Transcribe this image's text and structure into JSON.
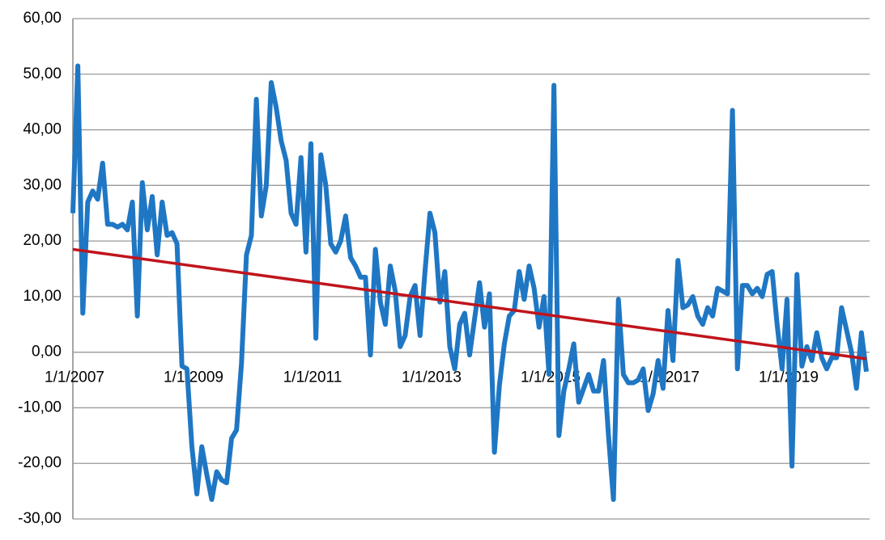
{
  "chart_data": {
    "type": "line",
    "categories": [
      "1/1/2007",
      null,
      null,
      null,
      null,
      null,
      null,
      null,
      null,
      null,
      null,
      null,
      null,
      null,
      null,
      null,
      null,
      null,
      null,
      null,
      null,
      null,
      null,
      null,
      "1/1/2009",
      null,
      null,
      null,
      null,
      null,
      null,
      null,
      null,
      null,
      null,
      null,
      null,
      null,
      null,
      null,
      null,
      null,
      null,
      null,
      null,
      null,
      null,
      null,
      "1/1/2011",
      null,
      null,
      null,
      null,
      null,
      null,
      null,
      null,
      null,
      null,
      null,
      null,
      null,
      null,
      null,
      null,
      null,
      null,
      null,
      null,
      null,
      null,
      null,
      "1/1/2013",
      null,
      null,
      null,
      null,
      null,
      null,
      null,
      null,
      null,
      null,
      null,
      null,
      null,
      null,
      null,
      null,
      null,
      null,
      null,
      null,
      null,
      null,
      null,
      "1/1/2015",
      null,
      null,
      null,
      null,
      null,
      null,
      null,
      null,
      null,
      null,
      null,
      null,
      null,
      null,
      null,
      null,
      null,
      null,
      null,
      null,
      null,
      null,
      null,
      "1/1/2017",
      null,
      null,
      null,
      null,
      null,
      null,
      null,
      null,
      null,
      null,
      null,
      null,
      null,
      null,
      null,
      null,
      null,
      null,
      null,
      null,
      null,
      null,
      null,
      "1/1/2019",
      null,
      null,
      null,
      null,
      null,
      null,
      null,
      null,
      null,
      null,
      null,
      null,
      null,
      null,
      null,
      null
    ],
    "series": [
      {
        "color": "#1f77c4",
        "values": [
          25,
          51.5,
          7,
          27,
          29,
          27.5,
          34,
          23,
          23,
          22.5,
          23,
          22,
          27,
          6.5,
          30.5,
          22,
          28,
          17.5,
          27,
          21,
          21.5,
          19.5,
          -2.5,
          -3,
          -17,
          -25.5,
          -17,
          -22,
          -26.5,
          -21.5,
          -23,
          -23.5,
          -15.5,
          -14,
          -2,
          17.5,
          21,
          45.5,
          24.5,
          30,
          48.5,
          44,
          38,
          34.5,
          25,
          23,
          35,
          18,
          37.5,
          2.5,
          35.5,
          30,
          19.5,
          18,
          20,
          24.5,
          17,
          15.5,
          13.5,
          13.5,
          -0.5,
          18.5,
          9,
          5,
          15.5,
          11,
          1,
          3,
          10,
          12,
          3,
          14.5,
          25,
          21.5,
          9,
          14.5,
          1,
          -3,
          5,
          7,
          -0.5,
          6,
          12.5,
          4.5,
          10.5,
          -18,
          -6,
          1.5,
          6.5,
          7.5,
          14.5,
          9.5,
          15.5,
          11.5,
          4.5,
          10,
          -4,
          48,
          -15,
          -7,
          -3,
          1.5,
          -9,
          -6.5,
          -4,
          -7,
          -7,
          -1.5,
          -15,
          -26.5,
          9.5,
          -4,
          -5.5,
          -5.5,
          -5,
          -3,
          -10.5,
          -7.5,
          -1.5,
          -6.5,
          7.5,
          -1.5,
          16.5,
          8,
          8.5,
          10,
          6.5,
          5,
          8,
          6.5,
          11.5,
          11,
          10.5,
          43.5,
          -3,
          12,
          12,
          10.5,
          11.5,
          10,
          14,
          14.5,
          5,
          -3,
          9.5,
          -20.5,
          14,
          -2.5,
          1,
          -1.5,
          3.5,
          -1,
          -3,
          -1,
          -1,
          8,
          4,
          0,
          -6.5,
          3.5,
          -3.5
        ]
      }
    ],
    "trend": {
      "color": "#c0141c",
      "start": 18.5,
      "end": -1.2
    },
    "ylim": [
      -30,
      60
    ],
    "yticks": [
      {
        "value": -30,
        "label": "-30,00"
      },
      {
        "value": -20,
        "label": "-20,00"
      },
      {
        "value": -10,
        "label": "-10,00"
      },
      {
        "value": 0,
        "label": "0,00"
      },
      {
        "value": 10,
        "label": "10,00"
      },
      {
        "value": 20,
        "label": "20,00"
      },
      {
        "value": 30,
        "label": "30,00"
      },
      {
        "value": 40,
        "label": "40,00"
      },
      {
        "value": 50,
        "label": "50,00"
      },
      {
        "value": 60,
        "label": "60,00"
      }
    ],
    "grid": true
  }
}
